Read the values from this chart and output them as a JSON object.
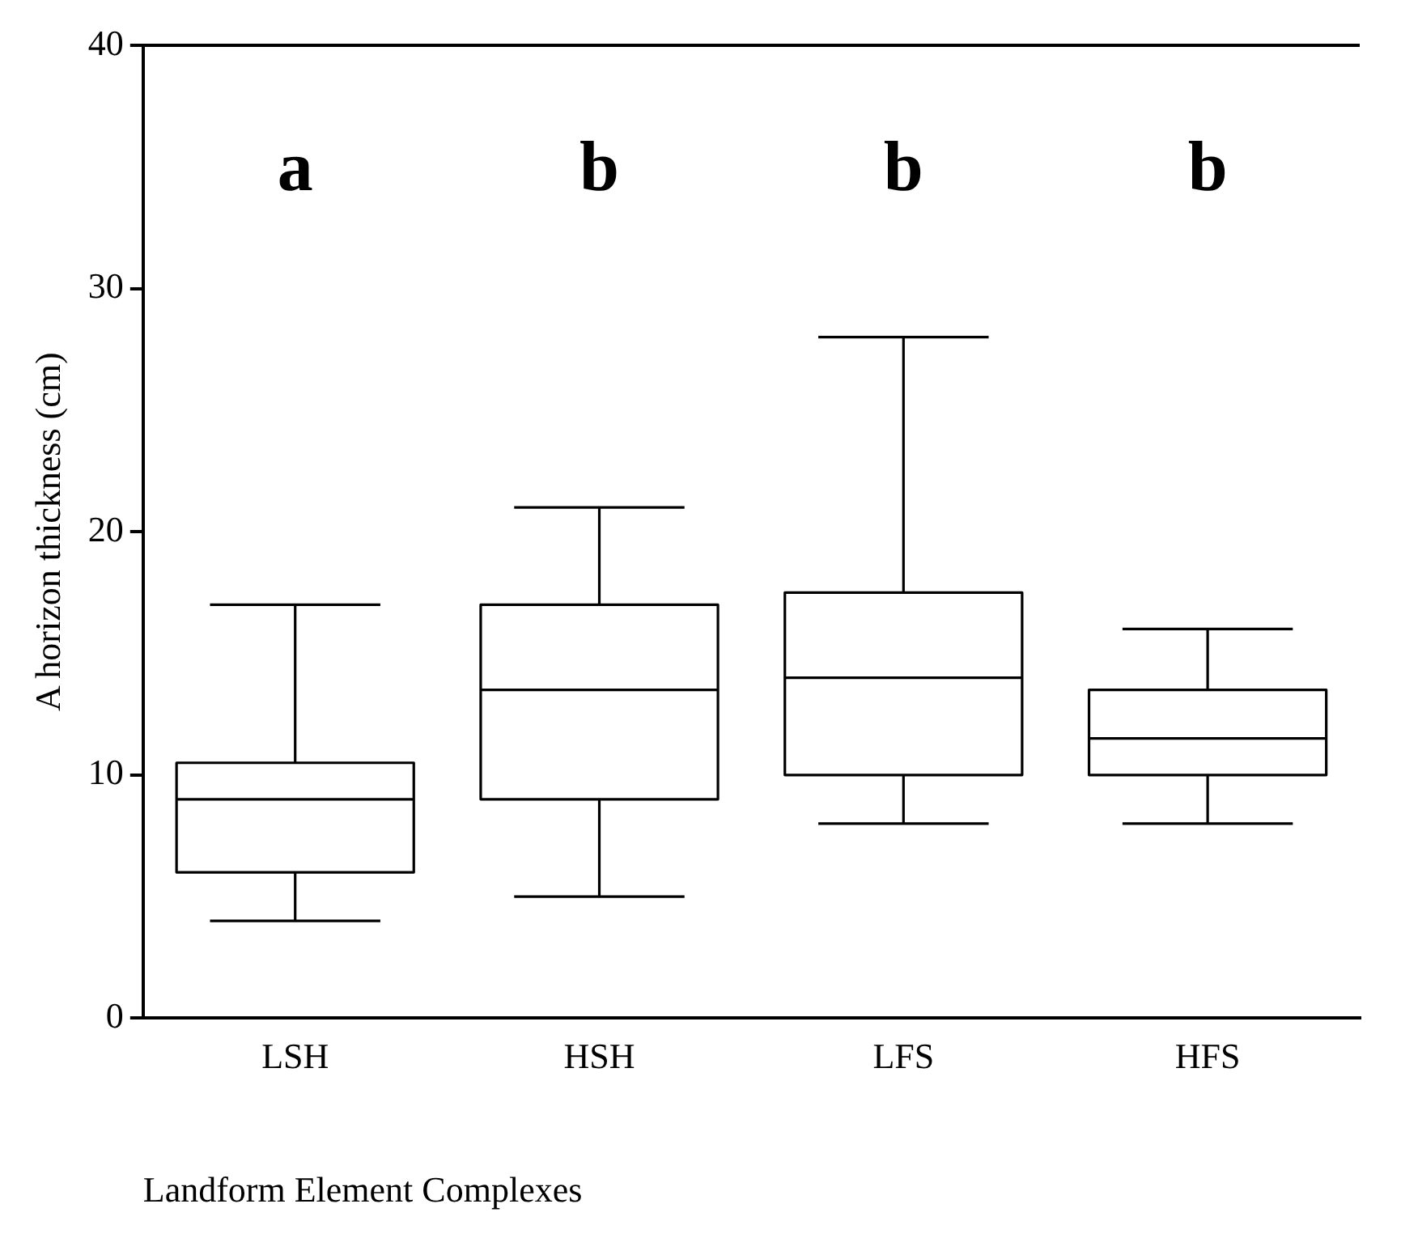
{
  "chart_data": {
    "type": "box",
    "xlabel": "Landform Element Complexes",
    "ylabel": "A horizon thickness (cm)",
    "categories": [
      "LSH",
      "HSH",
      "LFS",
      "HFS"
    ],
    "boxes": [
      {
        "low": 4,
        "q1": 6,
        "median": 9,
        "q3": 10.5,
        "high": 17
      },
      {
        "low": 5,
        "q1": 9,
        "median": 13.5,
        "q3": 17,
        "high": 21
      },
      {
        "low": 8,
        "q1": 10,
        "median": 14,
        "q3": 17.5,
        "high": 28
      },
      {
        "low": 8,
        "q1": 10,
        "median": 11.5,
        "q3": 13.5,
        "high": 16
      }
    ],
    "ylim": [
      0,
      40
    ],
    "yticks": [
      0,
      10,
      20,
      30,
      40
    ],
    "grid": false,
    "annotations": [
      "a",
      "b",
      "b",
      "b"
    ]
  }
}
